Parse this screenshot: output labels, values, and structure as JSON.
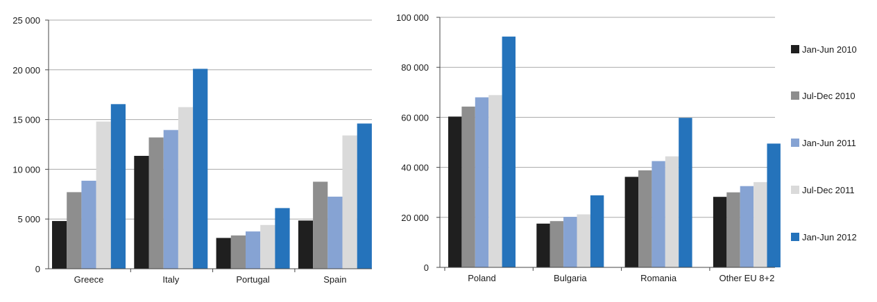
{
  "series_colors": [
    "#1f1f1f",
    "#8e8e8e",
    "#86a3d3",
    "#dadada",
    "#2573bb"
  ],
  "chart_data": [
    {
      "type": "bar",
      "categories": [
        "Greece",
        "Italy",
        "Portugal",
        "Spain"
      ],
      "ylim": [
        0,
        25000
      ],
      "yticks": [
        0,
        5000,
        10000,
        15000,
        20000,
        25000
      ],
      "ytick_labels": [
        "0",
        "5 000",
        "10 000",
        "15 000",
        "20 000",
        "25 000"
      ],
      "grid": true,
      "series": [
        {
          "values": [
            4800,
            11350,
            3100,
            4850
          ]
        },
        {
          "values": [
            7700,
            13200,
            3350,
            8750
          ]
        },
        {
          "values": [
            8850,
            13950,
            3750,
            7250
          ]
        },
        {
          "values": [
            14800,
            16250,
            4400,
            13400
          ]
        },
        {
          "values": [
            16550,
            20100,
            6100,
            14600
          ]
        }
      ]
    },
    {
      "type": "bar",
      "categories": [
        "Poland",
        "Bulgaria",
        "Romania",
        "Other EU 8+2"
      ],
      "ylim": [
        0,
        100000
      ],
      "yticks": [
        0,
        20000,
        40000,
        60000,
        80000,
        100000
      ],
      "ytick_labels": [
        "0",
        "20 000",
        "40 000",
        "60 000",
        "80 000",
        "100 000"
      ],
      "grid": true,
      "legend_position": "right",
      "series": [
        {
          "name": "Jan-Jun 2010",
          "values": [
            60300,
            17500,
            36200,
            28200
          ]
        },
        {
          "name": "Jul-Dec 2010",
          "values": [
            64300,
            18500,
            38800,
            30000
          ]
        },
        {
          "name": "Jan-Jun 2011",
          "values": [
            68000,
            20200,
            42500,
            32500
          ]
        },
        {
          "name": "Jul-Dec 2011",
          "values": [
            68900,
            21200,
            44400,
            34100
          ]
        },
        {
          "name": "Jan-Jun 2012",
          "values": [
            92300,
            28800,
            59800,
            49500
          ]
        }
      ]
    }
  ]
}
